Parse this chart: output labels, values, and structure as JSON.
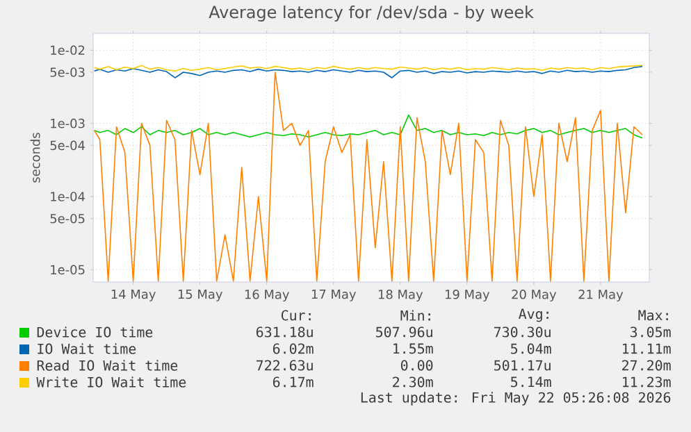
{
  "chart_data": {
    "type": "line",
    "title": "Average latency for /dev/sda - by week",
    "ylabel": "seconds",
    "log": "y",
    "grid": true,
    "legend": "bottom",
    "marker": "none",
    "line_style": "solid",
    "xlim": [
      "2026-05-13T21:36",
      "2026-05-22T05:31"
    ],
    "ylim": [
      6.8e-06,
      0.017
    ],
    "xticks": [
      {
        "value": "2026-05-14T12:00",
        "label": "14 May"
      },
      {
        "value": "2026-05-15T12:00",
        "label": "15 May"
      },
      {
        "value": "2026-05-16T12:00",
        "label": "16 May"
      },
      {
        "value": "2026-05-17T12:00",
        "label": "17 May"
      },
      {
        "value": "2026-05-18T12:00",
        "label": "18 May"
      },
      {
        "value": "2026-05-19T12:00",
        "label": "19 May"
      },
      {
        "value": "2026-05-20T12:00",
        "label": "20 May"
      },
      {
        "value": "2026-05-21T12:00",
        "label": "21 May"
      }
    ],
    "yticks": [
      {
        "value": 1e-05,
        "label": "1e-05"
      },
      {
        "value": 5e-05,
        "label": "5e-05"
      },
      {
        "value": 0.0001,
        "label": "1e-04"
      },
      {
        "value": 0.0005,
        "label": "5e-04"
      },
      {
        "value": 0.001,
        "label": "1e-03"
      },
      {
        "value": 0.005,
        "label": "5e-03"
      },
      {
        "value": 0.01,
        "label": "1e-02"
      }
    ],
    "x": [
      "2026-05-13T22:00",
      "2026-05-14T00:00",
      "2026-05-14T03:00",
      "2026-05-14T06:00",
      "2026-05-14T09:00",
      "2026-05-14T12:00",
      "2026-05-14T15:00",
      "2026-05-14T18:00",
      "2026-05-14T21:00",
      "2026-05-15T00:00",
      "2026-05-15T03:00",
      "2026-05-15T06:00",
      "2026-05-15T09:00",
      "2026-05-15T12:00",
      "2026-05-15T15:00",
      "2026-05-15T18:00",
      "2026-05-15T21:00",
      "2026-05-16T00:00",
      "2026-05-16T03:00",
      "2026-05-16T06:00",
      "2026-05-16T09:00",
      "2026-05-16T12:00",
      "2026-05-16T15:00",
      "2026-05-16T18:00",
      "2026-05-16T21:00",
      "2026-05-17T00:00",
      "2026-05-17T03:00",
      "2026-05-17T06:00",
      "2026-05-17T09:00",
      "2026-05-17T12:00",
      "2026-05-17T15:00",
      "2026-05-17T18:00",
      "2026-05-17T21:00",
      "2026-05-18T00:00",
      "2026-05-18T03:00",
      "2026-05-18T06:00",
      "2026-05-18T09:00",
      "2026-05-18T12:00",
      "2026-05-18T15:00",
      "2026-05-18T18:00",
      "2026-05-18T21:00",
      "2026-05-19T00:00",
      "2026-05-19T03:00",
      "2026-05-19T06:00",
      "2026-05-19T09:00",
      "2026-05-19T12:00",
      "2026-05-19T15:00",
      "2026-05-19T18:00",
      "2026-05-19T21:00",
      "2026-05-20T00:00",
      "2026-05-20T03:00",
      "2026-05-20T06:00",
      "2026-05-20T09:00",
      "2026-05-20T12:00",
      "2026-05-20T15:00",
      "2026-05-20T18:00",
      "2026-05-20T21:00",
      "2026-05-21T00:00",
      "2026-05-21T03:00",
      "2026-05-21T06:00",
      "2026-05-21T09:00",
      "2026-05-21T12:00",
      "2026-05-21T15:00",
      "2026-05-21T18:00",
      "2026-05-21T21:00",
      "2026-05-22T00:00",
      "2026-05-22T03:00"
    ],
    "series": [
      {
        "name": "Device IO time",
        "color": "#00cc00",
        "values": [
          0.0008,
          0.00075,
          0.0008,
          0.0007,
          0.00085,
          0.00075,
          0.0009,
          0.0007,
          0.0008,
          0.00075,
          0.0008,
          0.0007,
          0.00075,
          0.00085,
          0.0007,
          0.00075,
          0.0007,
          0.00075,
          0.0007,
          0.00065,
          0.0007,
          0.00075,
          0.0007,
          0.00068,
          0.00072,
          0.0007,
          0.00065,
          0.0007,
          0.00075,
          0.0007,
          0.00068,
          0.00072,
          0.0007,
          0.00075,
          0.0008,
          0.0007,
          0.00075,
          0.0007,
          0.0013,
          0.0008,
          0.00085,
          0.00075,
          0.0008,
          0.0007,
          0.00075,
          0.0007,
          0.00072,
          0.00068,
          0.00075,
          0.0007,
          0.00075,
          0.00072,
          0.0008,
          0.00085,
          0.00075,
          0.0008,
          0.0007,
          0.00075,
          0.0008,
          0.00085,
          0.00075,
          0.0008,
          0.00075,
          0.0008,
          0.00085,
          0.0007,
          0.00063
        ]
      },
      {
        "name": "IO Wait time",
        "color": "#0066b3",
        "values": [
          0.0052,
          0.0055,
          0.005,
          0.0054,
          0.0052,
          0.0056,
          0.0053,
          0.005,
          0.0054,
          0.0051,
          0.0042,
          0.005,
          0.0048,
          0.0045,
          0.005,
          0.0052,
          0.005,
          0.0053,
          0.0054,
          0.0051,
          0.0055,
          0.0052,
          0.0054,
          0.0053,
          0.0051,
          0.0052,
          0.005,
          0.0053,
          0.0051,
          0.0054,
          0.0052,
          0.005,
          0.0053,
          0.0051,
          0.0052,
          0.005,
          0.0042,
          0.0052,
          0.0053,
          0.005,
          0.0052,
          0.0048,
          0.0051,
          0.005,
          0.0052,
          0.0049,
          0.0051,
          0.005,
          0.0052,
          0.0051,
          0.005,
          0.0052,
          0.005,
          0.0051,
          0.0048,
          0.0052,
          0.005,
          0.0053,
          0.0051,
          0.0052,
          0.005,
          0.0052,
          0.0051,
          0.0053,
          0.0054,
          0.0058,
          0.006
        ]
      },
      {
        "name": "Read IO Wait time",
        "color": "#ff8000",
        "values": [
          0.0008,
          0.0006,
          7e-06,
          0.0009,
          0.0004,
          7e-06,
          0.001,
          0.0005,
          7e-06,
          0.0011,
          0.0006,
          7e-06,
          0.0008,
          0.0002,
          0.001,
          7e-06,
          3e-05,
          7e-06,
          0.00025,
          7e-06,
          0.0001,
          7e-06,
          0.005,
          0.0008,
          0.001,
          0.0005,
          0.0008,
          7e-06,
          0.0003,
          0.0009,
          0.0004,
          0.0007,
          7e-06,
          0.0006,
          2e-05,
          0.0003,
          7e-06,
          0.0009,
          7e-06,
          0.0012,
          0.0003,
          7e-06,
          0.0008,
          0.0002,
          0.001,
          7e-06,
          0.0006,
          0.0004,
          7e-06,
          0.0011,
          0.0005,
          7e-06,
          0.0009,
          0.0001,
          0.0007,
          7e-06,
          0.001,
          0.0003,
          0.0012,
          7e-06,
          0.0008,
          0.0015,
          7e-06,
          0.001,
          6e-05,
          0.0009,
          0.0007
        ]
      },
      {
        "name": "Write IO Wait time",
        "color": "#ffcc00",
        "values": [
          0.0058,
          0.0055,
          0.006,
          0.0054,
          0.0059,
          0.0056,
          0.0062,
          0.0055,
          0.0058,
          0.0054,
          0.0052,
          0.0056,
          0.0053,
          0.0055,
          0.0058,
          0.0054,
          0.0056,
          0.0059,
          0.0061,
          0.0057,
          0.0059,
          0.0056,
          0.006,
          0.0058,
          0.0055,
          0.0057,
          0.0054,
          0.0058,
          0.0056,
          0.006,
          0.0057,
          0.0055,
          0.0058,
          0.0055,
          0.0058,
          0.0056,
          0.0055,
          0.0059,
          0.0057,
          0.0055,
          0.0058,
          0.0054,
          0.0057,
          0.0055,
          0.0058,
          0.0054,
          0.0056,
          0.0055,
          0.0058,
          0.0056,
          0.0054,
          0.0057,
          0.0055,
          0.0056,
          0.0053,
          0.0057,
          0.0055,
          0.0058,
          0.0056,
          0.0057,
          0.0054,
          0.0058,
          0.0056,
          0.0059,
          0.006,
          0.0061,
          0.0062
        ]
      }
    ],
    "annotations": [
      "Cur:",
      "Min:",
      "Avg:",
      "Max:",
      "631.18u",
      "507.96u",
      "730.30u",
      "3.05m",
      "6.02m",
      "1.55m",
      "5.04m",
      "11.11m",
      "722.63u",
      "0.00",
      "501.17u",
      "27.20m",
      "6.17m",
      "2.30m",
      "5.14m",
      "11.23m",
      "Last update: Fri May 22 05:26:08 2026"
    ]
  }
}
